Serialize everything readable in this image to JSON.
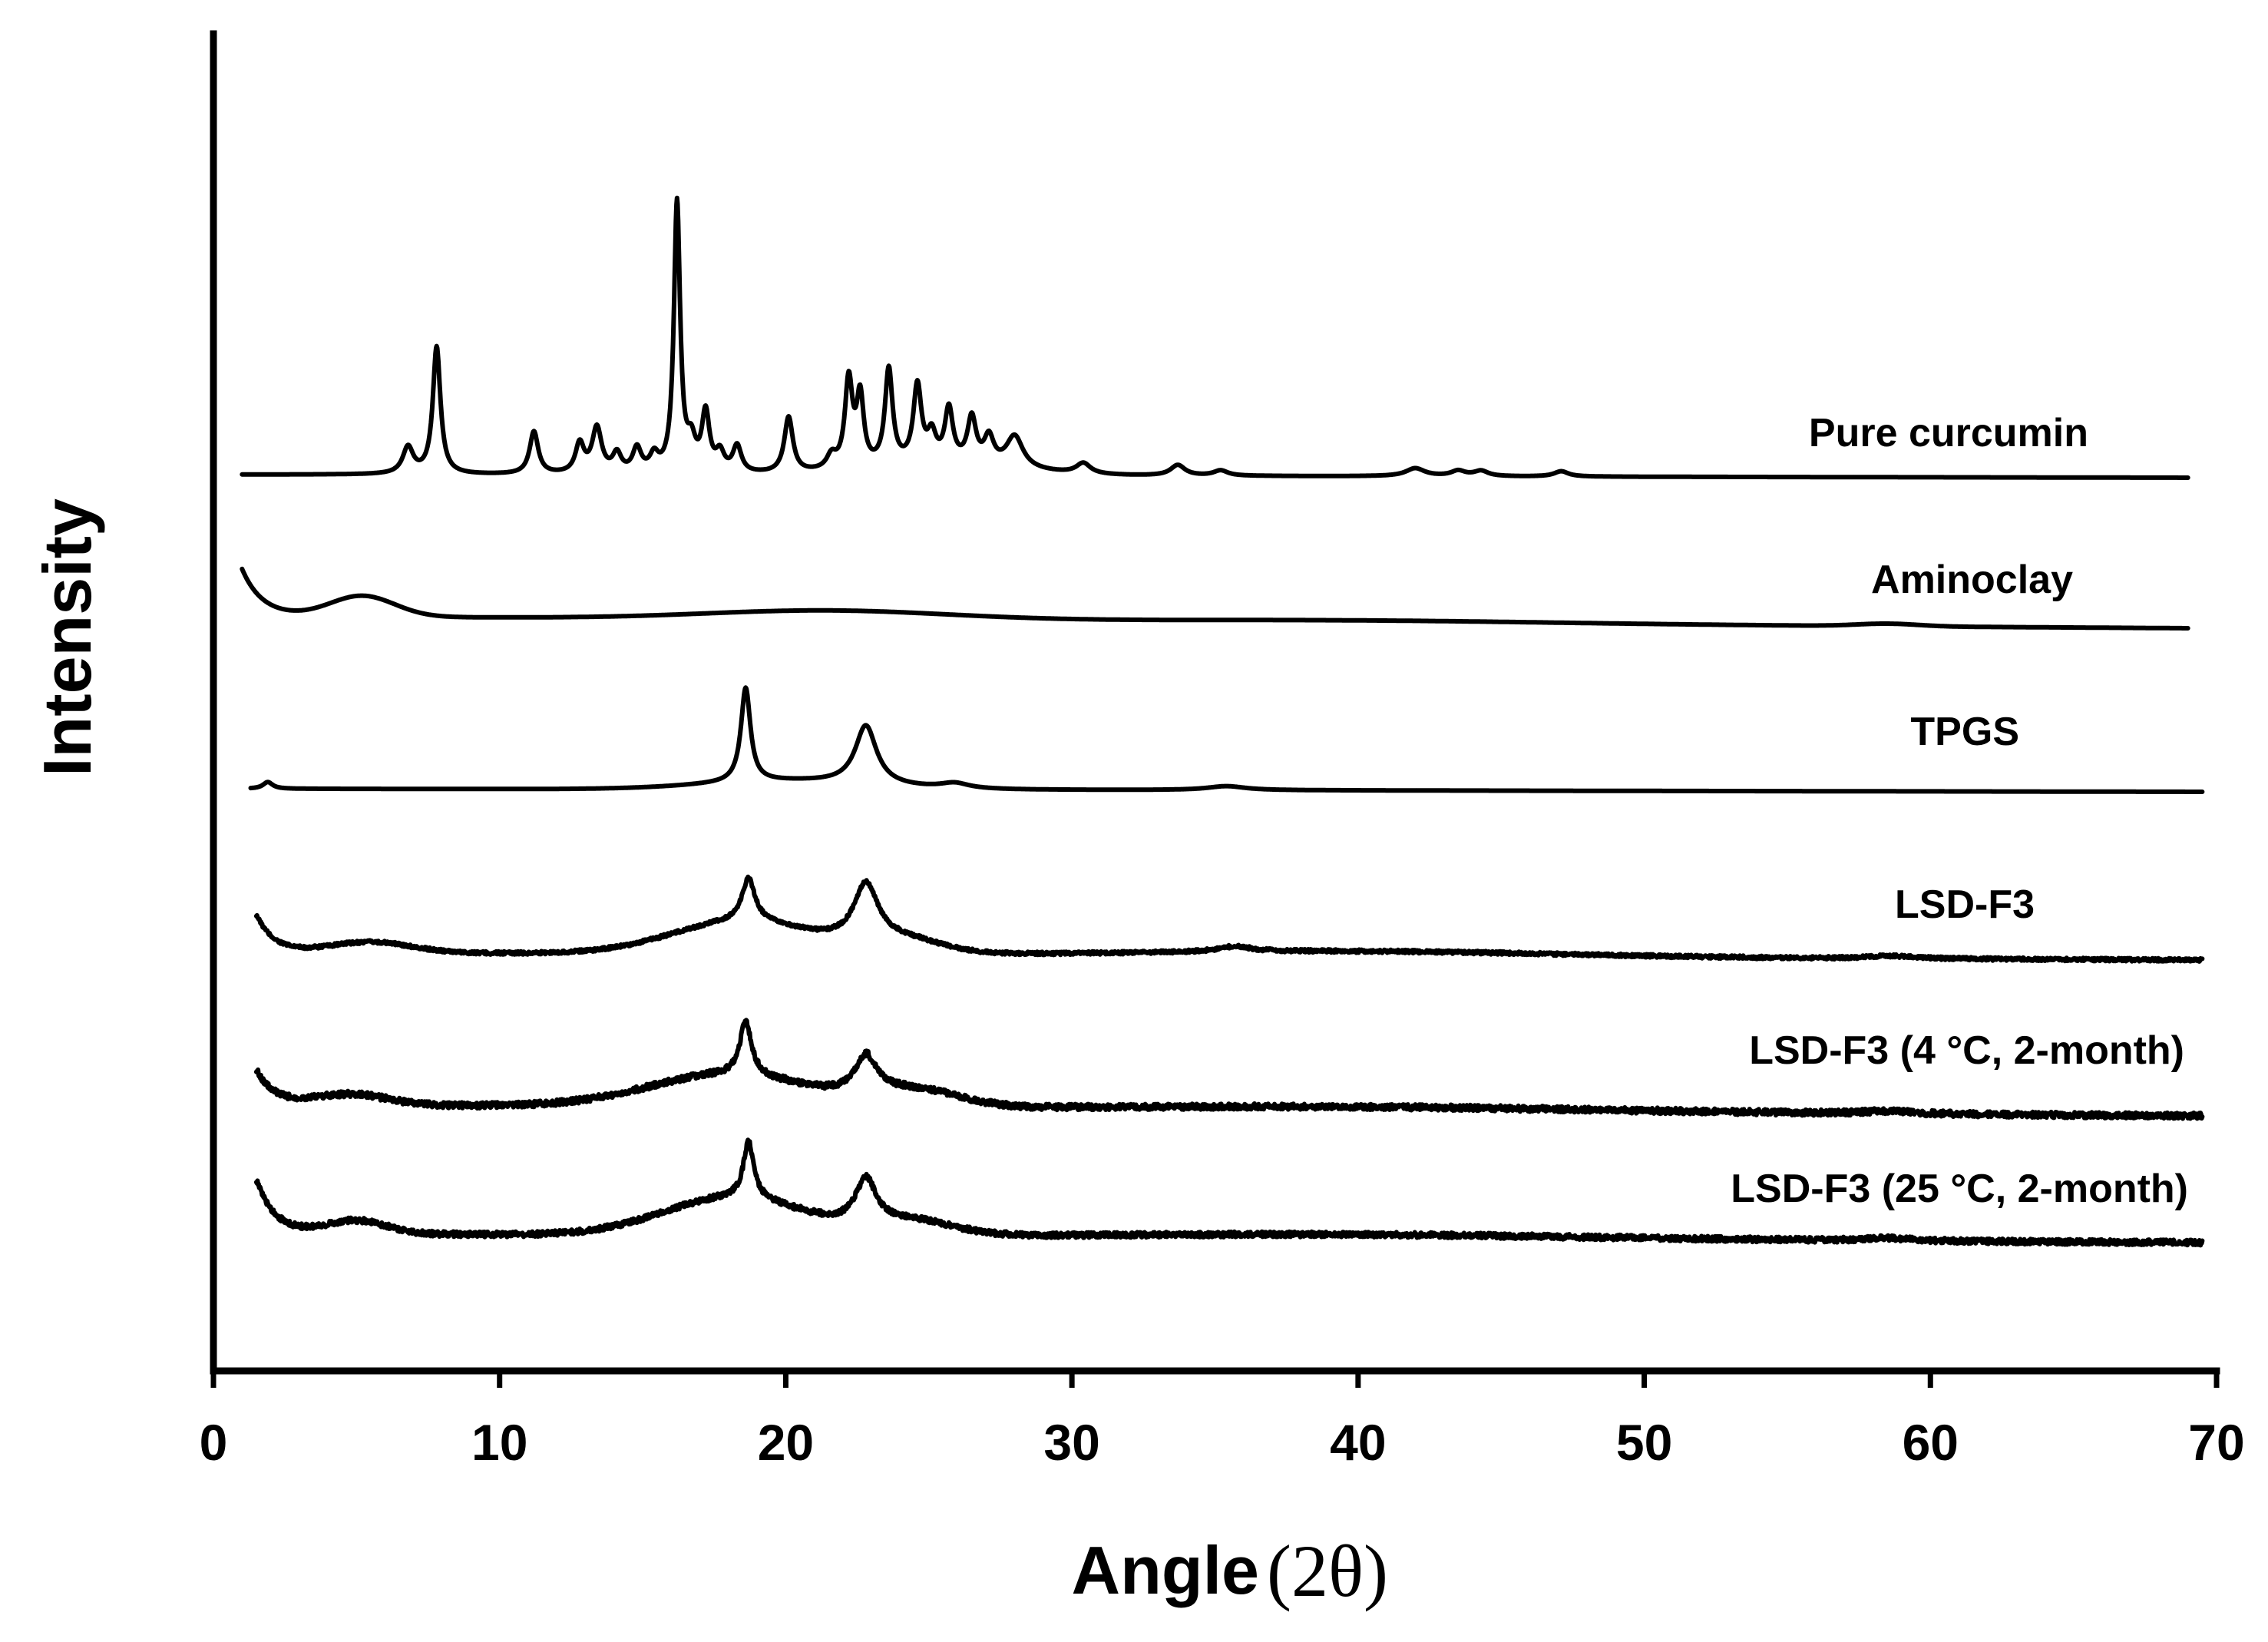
{
  "chart_data": {
    "type": "line",
    "xlabel": "Angle",
    "xlabel_unit": "(2θ)",
    "ylabel": "Intensity",
    "xlim": [
      0,
      70
    ],
    "x_ticks": [
      0,
      10,
      20,
      30,
      40,
      50,
      60,
      70
    ],
    "x_tick_labels": [
      "0",
      "10",
      "20",
      "30",
      "40",
      "50",
      "60",
      "70"
    ],
    "y_ticks_visible": false,
    "grid": false,
    "legend": "none (series labeled inline above each trace)",
    "series": [
      {
        "name": "Pure curcumin",
        "x_range": [
          1,
          69
        ],
        "baseline": 0,
        "peaks": [
          [
            6.8,
            10,
            0.22
          ],
          [
            7.8,
            48,
            0.16
          ],
          [
            11.2,
            16,
            0.18
          ],
          [
            12.8,
            11,
            0.18
          ],
          [
            13.4,
            17,
            0.2
          ],
          [
            14.1,
            7,
            0.18
          ],
          [
            14.8,
            9,
            0.18
          ],
          [
            15.4,
            6,
            0.18
          ],
          [
            16.2,
            102,
            0.13
          ],
          [
            16.7,
            10,
            0.18
          ],
          [
            17.2,
            22,
            0.16
          ],
          [
            17.7,
            7,
            0.18
          ],
          [
            18.3,
            10,
            0.18
          ],
          [
            20.1,
            21,
            0.18
          ],
          [
            21.6,
            5,
            0.2
          ],
          [
            22.2,
            33,
            0.16
          ],
          [
            22.6,
            26,
            0.15
          ],
          [
            23.6,
            36,
            0.16
          ],
          [
            24.6,
            29,
            0.17
          ],
          [
            25.1,
            10,
            0.18
          ],
          [
            25.7,
            20,
            0.17
          ],
          [
            26.5,
            17,
            0.18
          ],
          [
            27.1,
            10,
            0.2
          ],
          [
            28.0,
            12,
            0.35
          ],
          [
            30.4,
            4,
            0.3
          ],
          [
            33.7,
            4,
            0.3
          ],
          [
            35.2,
            2,
            0.3
          ],
          [
            42.0,
            3,
            0.4
          ],
          [
            43.5,
            2,
            0.3
          ],
          [
            44.3,
            2,
            0.3
          ],
          [
            47.1,
            2,
            0.3
          ]
        ],
        "broad_humps": [
          [
            25.5,
            4,
            3.5
          ]
        ],
        "start_rise": [
          0,
          0
        ],
        "noise": 0
      },
      {
        "name": "Aminoclay",
        "x_range": [
          1,
          69
        ],
        "baseline": 0,
        "peaks": [],
        "broad_humps": [
          [
            5.2,
            8,
            1.6
          ],
          [
            21.5,
            3.5,
            6
          ],
          [
            40,
            1,
            10
          ],
          [
            58.5,
            1,
            1.5
          ]
        ],
        "start_rise": [
          18,
          0.7
        ],
        "noise": 0
      },
      {
        "name": "TPGS",
        "x_range": [
          1.3,
          69.5
        ],
        "baseline": 0,
        "peaks": [
          [
            1.9,
            2.5,
            0.2
          ],
          [
            18.6,
            35,
            0.2
          ],
          [
            22.8,
            22,
            0.45
          ],
          [
            25.9,
            2,
            0.6
          ],
          [
            35.4,
            1.5,
            0.8
          ]
        ],
        "broad_humps": [
          [
            20,
            3,
            4
          ]
        ],
        "start_rise": [
          0,
          0
        ],
        "noise": 0
      },
      {
        "name": "LSD-F3",
        "x_range": [
          1.5,
          69.5
        ],
        "baseline": 0,
        "peaks": [
          [
            18.7,
            16,
            0.28
          ],
          [
            22.8,
            21,
            0.5
          ],
          [
            35.7,
            2,
            0.7
          ],
          [
            58.6,
            1,
            1
          ]
        ],
        "broad_humps": [
          [
            5.5,
            4,
            2
          ],
          [
            18.5,
            12,
            3.5
          ],
          [
            24,
            5,
            2
          ],
          [
            40,
            2,
            10
          ]
        ],
        "start_rise": [
          14,
          0.6
        ],
        "noise": 0.6
      },
      {
        "name": "LSD-F3 (4 °C, 2-month)",
        "x_range": [
          1.5,
          69.5
        ],
        "baseline": 0,
        "peaks": [
          [
            18.6,
            20,
            0.25
          ],
          [
            22.8,
            14,
            0.45
          ],
          [
            58.5,
            1,
            1
          ]
        ],
        "broad_humps": [
          [
            4.8,
            4,
            1.8
          ],
          [
            18,
            12,
            4
          ],
          [
            24.5,
            6,
            2.2
          ],
          [
            40,
            1.5,
            12
          ]
        ],
        "start_rise": [
          13,
          0.6
        ],
        "noise": 1.1
      },
      {
        "name": "LSD-F3 (25 °C, 2-month)",
        "x_range": [
          1.5,
          69.5
        ],
        "baseline": 0,
        "peaks": [
          [
            18.7,
            21,
            0.22
          ],
          [
            22.8,
            17,
            0.45
          ],
          [
            58.5,
            1,
            1
          ]
        ],
        "broad_humps": [
          [
            5,
            5,
            1.5
          ],
          [
            18.2,
            14,
            3.5
          ],
          [
            24.5,
            5,
            2
          ],
          [
            40,
            1.5,
            12
          ]
        ],
        "start_rise": [
          20,
          0.65
        ],
        "noise": 1.0
      }
    ]
  }
}
